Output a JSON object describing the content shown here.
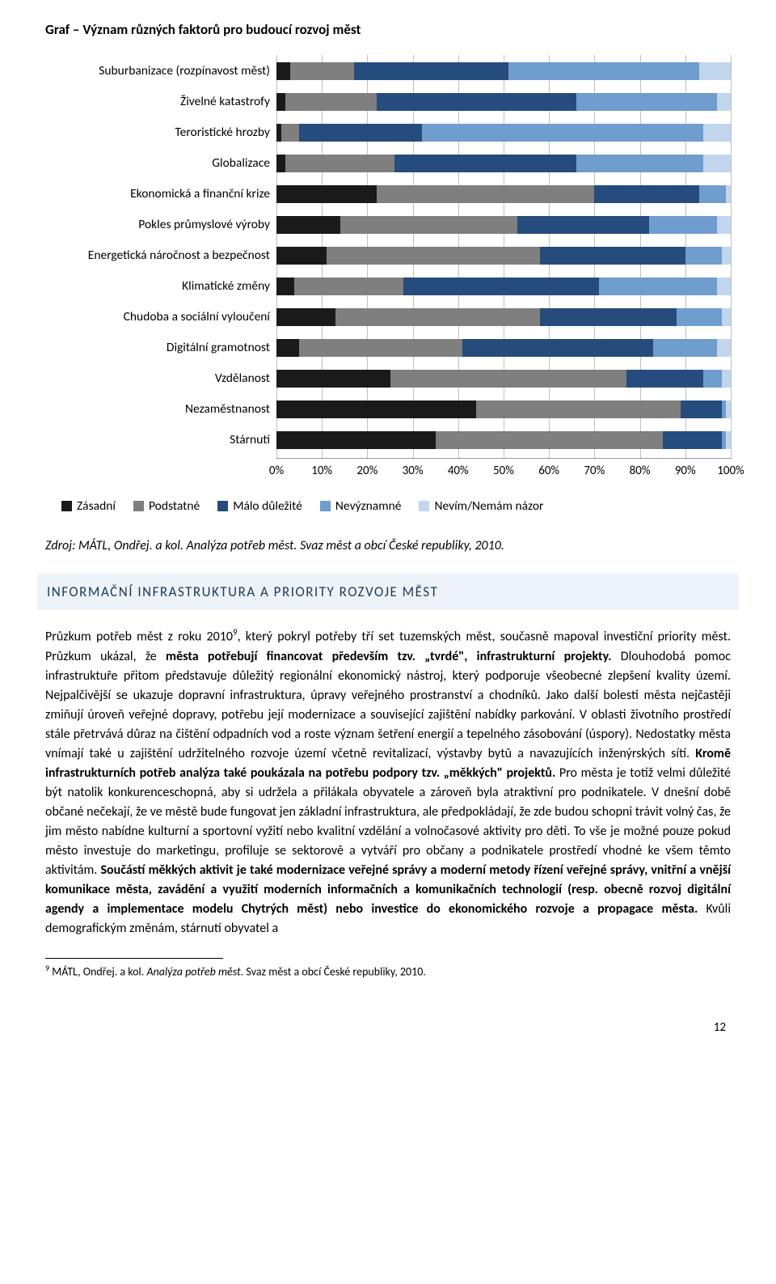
{
  "chart": {
    "title": "Graf – Význam různých faktorů pro budoucí rozvoj měst",
    "type": "bar-stacked-horizontal",
    "series_colors": [
      "#1a1a1a",
      "#7f7f7f",
      "#254c7c",
      "#6e9dce",
      "#c1d6ec"
    ],
    "legend": [
      "Zásadní",
      "Podstatné",
      "Málo důležité",
      "Nevýznamné",
      "Nevím/Nemám názor"
    ],
    "xticks": [
      "0%",
      "10%",
      "20%",
      "30%",
      "40%",
      "50%",
      "60%",
      "70%",
      "80%",
      "90%",
      "100%"
    ],
    "categories": [
      "Suburbanizace (rozpínavost měst)",
      "Živelné katastrofy",
      "Teroristické hrozby",
      "Globalizace",
      "Ekonomická a finanční krize",
      "Pokles průmyslové výroby",
      "Energetická náročnost a bezpečnost",
      "Klimatické změny",
      "Chudoba a sociální vyloučení",
      "Digitální gramotnost",
      "Vzdělanost",
      "Nezaměstnanost",
      "Stárnutí"
    ],
    "values": [
      [
        3,
        14,
        34,
        42,
        7
      ],
      [
        2,
        20,
        44,
        31,
        3
      ],
      [
        1,
        4,
        27,
        62,
        6
      ],
      [
        2,
        24,
        40,
        28,
        6
      ],
      [
        22,
        48,
        23,
        6,
        1
      ],
      [
        14,
        39,
        29,
        15,
        3
      ],
      [
        11,
        47,
        32,
        8,
        2
      ],
      [
        4,
        24,
        43,
        26,
        3
      ],
      [
        13,
        45,
        30,
        10,
        2
      ],
      [
        5,
        36,
        42,
        14,
        3
      ],
      [
        25,
        52,
        17,
        4,
        2
      ],
      [
        44,
        45,
        9,
        1,
        1
      ],
      [
        35,
        50,
        13,
        1,
        1
      ]
    ],
    "grid_color": "#c0c0c0",
    "background_color": "#ffffff",
    "label_fontsize": 15.5
  },
  "source": "Zdroj: MÁTL, Ondřej. a kol. Analýza potřeb měst. Svaz měst a obcí České republiky, 2010.",
  "section_heading": "INFORMAČNÍ INFRASTRUKTURA A PRIORITY ROZVOJE MĚST",
  "paragraph": {
    "p1a": "Průzkum potřeb měst z roku 2010",
    "p1sup": "9",
    "p1b": ", který pokryl potřeby tří set tuzemských měst, současně mapoval investiční priority měst. Průzkum ukázal, že ",
    "p1bold1": "města potřebují financovat především tzv. „tvrdé\", infrastrukturní projekty.",
    "p1c": " Dlouhodobá pomoc infrastruktuře přitom představuje důležitý regionální ekonomický nástroj, který podporuje všeobecné zlepšení kvality území. Nejpalčivější se ukazuje dopravní infrastruktura, úpravy veřejného prostranství a chodníků. Jako další bolesti města nejčastěji zmiňují úroveň veřejné dopravy, potřebu její modernizace a související zajištění nabídky parkování. V oblasti životního prostředí stále přetrvává důraz na čištění odpadních vod a roste význam šetření energií a tepelného zásobování (úspory). Nedostatky města vnímají také u zajištění udržitelného rozvoje území včetně revitalizací, výstavby bytů a navazujících inženýrských sítí. ",
    "p1bold2": "Kromě infrastrukturních potřeb analýza také poukázala na potřebu podpory tzv. „měkkých\" projektů.",
    "p1d": " Pro města je totiž velmi důležité být natolik konkurenceschopná, aby si udržela a přilákala obyvatele a zároveň byla atraktivní pro podnikatele. V dnešní době občané nečekají, že ve městě bude fungovat jen základní infrastruktura, ale předpokládají, že zde budou schopni trávit volný čas, že jim město nabídne kulturní a sportovní vyžití nebo kvalitní vzdělání a volnočasové aktivity pro děti. To vše je možné pouze pokud město investuje do marketingu, profiluje se sektorově a vytváří pro občany a podnikatele prostředí vhodné ke všem těmto aktivitám. ",
    "p1bold3": "Součástí měkkých aktivit je také modernizace veřejné správy a moderní metody řízení veřejné správy, vnitřní a vnější komunikace města, zavádění a využití moderních informačních a komunikačních technologií (resp. obecně rozvoj digitální agendy a implementace modelu Chytrých měst) nebo investice do ekonomického rozvoje a propagace města.",
    "p1e": " Kvůli demografickým změnám, stárnutí obyvatel a"
  },
  "footnote": {
    "sup": "9",
    "a": " MÁTL, Ondřej. a kol. ",
    "it": "Analýza potřeb měst.",
    "b": " Svaz měst a obcí České republiky, 2010."
  },
  "page_number": "12"
}
